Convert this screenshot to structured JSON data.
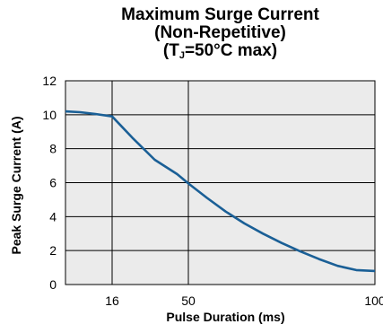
{
  "chart_data": {
    "type": "line",
    "title_line1": "Maximum Surge Current",
    "title_line2": "(Non-Repetitive)",
    "title_line3_prefix": "(T",
    "title_line3_sub": "J",
    "title_line3_suffix": "=50°C max)",
    "xlabel": "Pulse Duration (ms)",
    "ylabel": "Peak Surge Current (A)",
    "x_ticks": [
      16,
      50,
      100
    ],
    "y_ticks": [
      0,
      2,
      4,
      6,
      8,
      10,
      12
    ],
    "ylim": [
      0,
      12
    ],
    "grid": true,
    "series": [
      {
        "x": [
          0,
          5,
          10,
          16,
          25,
          35,
          45,
          50,
          55,
          60,
          65,
          70,
          75,
          80,
          85,
          90,
          95,
          100
        ],
        "y": [
          10.2,
          10.15,
          10.05,
          9.9,
          8.65,
          7.35,
          6.5,
          5.95,
          5.1,
          4.3,
          3.6,
          3.0,
          2.45,
          1.95,
          1.5,
          1.1,
          0.85,
          0.8
        ]
      }
    ],
    "colors": {
      "line": "#1a5f96",
      "plot_bg": "#ebebeb",
      "grid": "#000000"
    }
  }
}
